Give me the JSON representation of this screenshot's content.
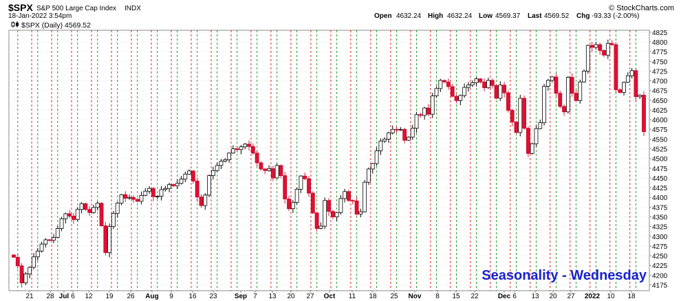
{
  "header": {
    "symbol": "$SPX",
    "name": "S&P 500 Large Cap Index",
    "exchange": "INDX",
    "timestamp": "18-Jan-2022 3:54pm",
    "watermark": "© StockCharts.com",
    "open_label": "Open",
    "open": "4632.24",
    "high_label": "High",
    "high": "4632.24",
    "low_label": "Low",
    "low": "4569.37",
    "last_label": "Last",
    "last": "4569.52",
    "chg_label": "Chg",
    "chg": "-93.33 (-2.00%)",
    "legend": "$SPX (Daily) 4569.52"
  },
  "annotation": "Seasonality - Wednesday",
  "chart_data": {
    "type": "candlestick",
    "ylim": [
      4160,
      4830
    ],
    "yticks": [
      4175,
      4200,
      4225,
      4250,
      4275,
      4300,
      4325,
      4350,
      4375,
      4400,
      4425,
      4450,
      4475,
      4500,
      4525,
      4550,
      4575,
      4600,
      4625,
      4650,
      4675,
      4700,
      4725,
      4750,
      4775,
      4800,
      4825
    ],
    "xticks": [
      "21",
      "28",
      "Jul",
      "6",
      "12",
      "19",
      "26",
      "Aug",
      "9",
      "16",
      "23",
      "Sep",
      "7",
      "13",
      "20",
      "27",
      "Oct",
      "11",
      "18",
      "25",
      "Nov",
      "8",
      "15",
      "22",
      "Dec",
      "6",
      "13",
      "20",
      "27",
      "2022",
      "10",
      "18"
    ],
    "bold_ticks": [
      "Jul",
      "Aug",
      "Sep",
      "Oct",
      "Nov",
      "Dec",
      "2022"
    ],
    "colors": {
      "up": "#ffffff",
      "up_border": "#000000",
      "down": "#dd1133",
      "down_border": "#cc0022",
      "green_line": "#229922",
      "red_line": "#dd2222",
      "annotation": "#1a22cc"
    },
    "vertical_lines": {
      "green": "Wednesday",
      "red": "weekly separator"
    },
    "closes": [
      4246,
      4224,
      4180,
      4203,
      4220,
      4247,
      4262,
      4280,
      4291,
      4290,
      4297,
      4320,
      4345,
      4358,
      4352,
      4343,
      4369,
      4384,
      4369,
      4361,
      4374,
      4385,
      4327,
      4258,
      4325,
      4359,
      4385,
      4407,
      4398,
      4400,
      4395,
      4390,
      4405,
      4416,
      4423,
      4402,
      4403,
      4420,
      4423,
      4433,
      4430,
      4436,
      4447,
      4460,
      4468,
      4442,
      4401,
      4379,
      4406,
      4456,
      4469,
      4482,
      4493,
      4497,
      4514,
      4525,
      4523,
      4530,
      4537,
      4531,
      4514,
      4489,
      4473,
      4469,
      4474,
      4450,
      4482,
      4456,
      4396,
      4371,
      4387,
      4421,
      4455,
      4448,
      4411,
      4360,
      4320,
      4326,
      4392,
      4364,
      4350,
      4361,
      4397,
      4415,
      4392,
      4391,
      4357,
      4363,
      4439,
      4473,
      4487,
      4520,
      4545,
      4550,
      4566,
      4575,
      4574,
      4575,
      4547,
      4555,
      4578,
      4613,
      4611,
      4630,
      4614,
      4661,
      4680,
      4701,
      4697,
      4685,
      4660,
      4649,
      4662,
      4683,
      4689,
      4695,
      4705,
      4697,
      4682,
      4701,
      4688,
      4655,
      4689,
      4669,
      4624,
      4594,
      4567,
      4655,
      4578,
      4513,
      4538,
      4577,
      4592,
      4686,
      4701,
      4710,
      4668,
      4634,
      4620,
      4709,
      4668,
      4649,
      4697,
      4725,
      4791,
      4786,
      4793,
      4778,
      4766,
      4796,
      4793,
      4677,
      4670,
      4696,
      4713,
      4726,
      4659,
      4663,
      4569
    ]
  }
}
